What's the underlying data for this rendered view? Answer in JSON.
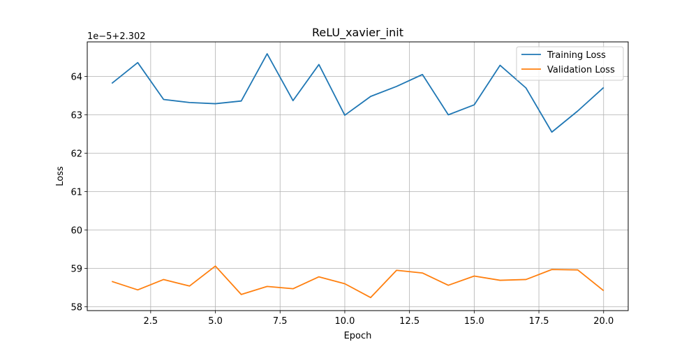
{
  "chart_data": {
    "type": "line",
    "title": "ReLU_xavier_init",
    "xlabel": "Epoch",
    "ylabel": "Loss",
    "offset_label": "1e−5+2.302",
    "xlim": [
      0.05,
      20.95
    ],
    "ylim": [
      57.9,
      64.9
    ],
    "xticks": [
      2.5,
      5.0,
      7.5,
      10.0,
      12.5,
      15.0,
      17.5,
      20.0
    ],
    "xtick_labels": [
      "2.5",
      "5.0",
      "7.5",
      "10.0",
      "12.5",
      "15.0",
      "17.5",
      "20.0"
    ],
    "yticks": [
      58,
      59,
      60,
      61,
      62,
      63,
      64
    ],
    "ytick_labels": [
      "58",
      "59",
      "60",
      "61",
      "62",
      "63",
      "64"
    ],
    "grid": true,
    "legend_position": "top-right",
    "x": [
      1,
      2,
      3,
      4,
      5,
      6,
      7,
      8,
      9,
      10,
      11,
      12,
      13,
      14,
      15,
      16,
      17,
      18,
      19,
      20
    ],
    "series": [
      {
        "name": "Training Loss",
        "color": "#1f77b4",
        "values": [
          63.82,
          64.36,
          63.4,
          63.32,
          63.29,
          63.36,
          64.59,
          63.37,
          64.31,
          62.99,
          63.48,
          63.74,
          64.05,
          63.0,
          63.26,
          64.29,
          63.7,
          62.55,
          63.1,
          63.71
        ]
      },
      {
        "name": "Validation Loss",
        "color": "#ff7f0e",
        "values": [
          58.66,
          58.44,
          58.71,
          58.54,
          59.06,
          58.32,
          58.53,
          58.47,
          58.78,
          58.6,
          58.24,
          58.95,
          58.88,
          58.56,
          58.8,
          58.69,
          58.71,
          58.97,
          58.96,
          58.42
        ]
      }
    ]
  }
}
